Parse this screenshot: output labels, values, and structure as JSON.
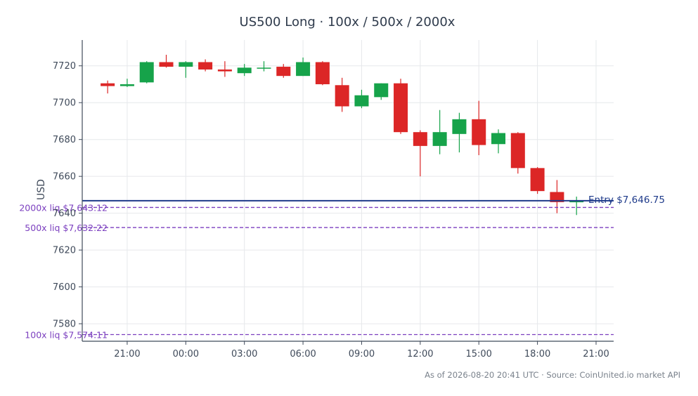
{
  "chart_data": {
    "type": "candlestick",
    "title": "US500 Long · 100x / 500x / 2000x",
    "ylabel": "USD",
    "xlabel": "",
    "ylim": [
      7570.5,
      7734
    ],
    "y_ticks": [
      7580,
      7600,
      7620,
      7640,
      7660,
      7680,
      7700,
      7720
    ],
    "x_range": [
      -1.3,
      25.9
    ],
    "x_ticks": [
      {
        "pos": 1,
        "label": "21:00"
      },
      {
        "pos": 4,
        "label": "00:00"
      },
      {
        "pos": 7,
        "label": "03:00"
      },
      {
        "pos": 10,
        "label": "06:00"
      },
      {
        "pos": 13,
        "label": "09:00"
      },
      {
        "pos": 16,
        "label": "12:00"
      },
      {
        "pos": 19,
        "label": "15:00"
      },
      {
        "pos": 22,
        "label": "18:00"
      },
      {
        "pos": 25,
        "label": "21:00"
      }
    ],
    "grid": true,
    "colors": {
      "up": "#16a34a",
      "down": "#dc2626",
      "entry": "#1e3a8a",
      "liq": "#7b3fbf",
      "grid": "#e6e8eb",
      "axis": "#3f4a5a"
    },
    "candles": [
      {
        "open": 7710.5,
        "high": 7712,
        "low": 7705,
        "close": 7709
      },
      {
        "open": 7709,
        "high": 7713,
        "low": 7708.5,
        "close": 7710
      },
      {
        "open": 7711,
        "high": 7722.5,
        "low": 7710.5,
        "close": 7722
      },
      {
        "open": 7722,
        "high": 7726,
        "low": 7719,
        "close": 7719.5
      },
      {
        "open": 7719.5,
        "high": 7722.5,
        "low": 7713.5,
        "close": 7722
      },
      {
        "open": 7722,
        "high": 7723.5,
        "low": 7717,
        "close": 7718
      },
      {
        "open": 7718,
        "high": 7722.5,
        "low": 7714,
        "close": 7717
      },
      {
        "open": 7716,
        "high": 7721,
        "low": 7714.5,
        "close": 7719
      },
      {
        "open": 7719,
        "high": 7722.5,
        "low": 7717,
        "close": 7719
      },
      {
        "open": 7719.5,
        "high": 7721,
        "low": 7713.5,
        "close": 7714.5
      },
      {
        "open": 7714.5,
        "high": 7724.5,
        "low": 7714.5,
        "close": 7722
      },
      {
        "open": 7722,
        "high": 7722.5,
        "low": 7709.5,
        "close": 7710
      },
      {
        "open": 7709.5,
        "high": 7713.5,
        "low": 7695,
        "close": 7698
      },
      {
        "open": 7698,
        "high": 7707,
        "low": 7697,
        "close": 7704
      },
      {
        "open": 7703,
        "high": 7710.5,
        "low": 7701.5,
        "close": 7710.5
      },
      {
        "open": 7710.5,
        "high": 7713,
        "low": 7683,
        "close": 7684
      },
      {
        "open": 7684,
        "high": 7685,
        "low": 7660,
        "close": 7676.5
      },
      {
        "open": 7676.5,
        "high": 7696,
        "low": 7672,
        "close": 7684
      },
      {
        "open": 7683,
        "high": 7694.5,
        "low": 7673,
        "close": 7691
      },
      {
        "open": 7691,
        "high": 7701,
        "low": 7671.5,
        "close": 7677
      },
      {
        "open": 7677.5,
        "high": 7685.5,
        "low": 7672.5,
        "close": 7683.5
      },
      {
        "open": 7683.5,
        "high": 7684,
        "low": 7661.5,
        "close": 7664.5
      },
      {
        "open": 7664.5,
        "high": 7665,
        "low": 7650.5,
        "close": 7652
      },
      {
        "open": 7651.5,
        "high": 7658,
        "low": 7640,
        "close": 7646
      },
      {
        "open": 7646,
        "high": 7649,
        "low": 7639,
        "close": 7646.5
      }
    ],
    "lines": [
      {
        "name": "entry",
        "value": 7646.75,
        "label": "Entry $7,646.75",
        "style": "solid",
        "label_side": "right"
      },
      {
        "name": "liq-2000x",
        "value": 7643.12,
        "label": "2000x liq $7,643.12",
        "style": "dashed",
        "label_side": "left"
      },
      {
        "name": "liq-500x",
        "value": 7632.22,
        "label": "500x liq $7,632.22",
        "style": "dashed",
        "label_side": "left"
      },
      {
        "name": "liq-100x",
        "value": 7574.11,
        "label": "100x liq $7,574.11",
        "style": "dashed",
        "label_side": "left"
      }
    ],
    "footer": "As of 2026-08-20 20:41 UTC · Source: CoinUnited.io market API"
  }
}
